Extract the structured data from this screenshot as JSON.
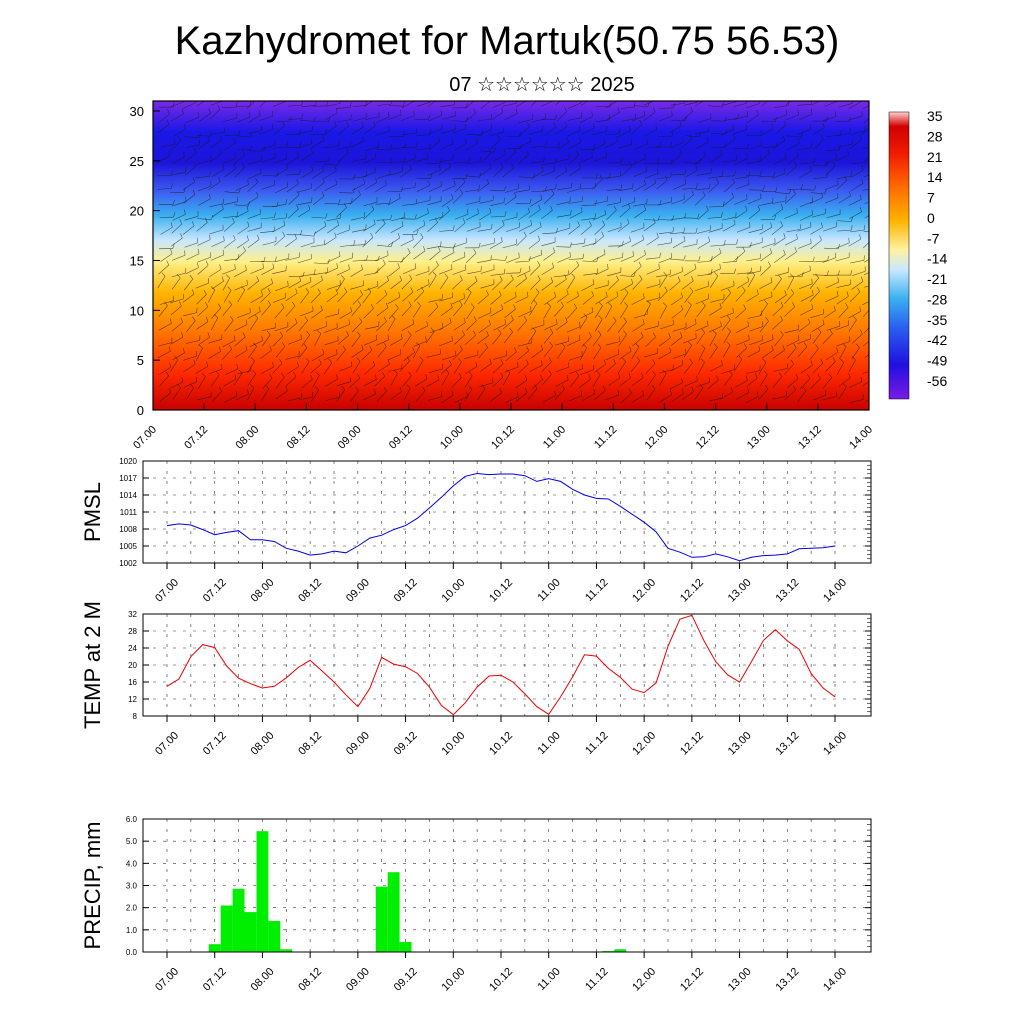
{
  "title": "Kazhydromet for Martuk(50.75 56.53)",
  "subtitle": "07 ☆☆☆☆☆☆ 2025",
  "time_labels": [
    "07.00",
    "07.12",
    "08.00",
    "08.12",
    "09.00",
    "09.12",
    "10.00",
    "10.12",
    "11.00",
    "11.12",
    "12.00",
    "12.12",
    "13.00",
    "13.12",
    "14.00"
  ],
  "colors": {
    "pmsl_line": "#0000ee",
    "temp_line": "#ee0000",
    "precip_bar": "#00ee00"
  },
  "chart_data": [
    {
      "type": "heatmap",
      "name": "upper-air-temperature",
      "y_ticks": [
        "0",
        "5",
        "10",
        "15",
        "20",
        "25",
        "30"
      ],
      "ylim": [
        0,
        31
      ],
      "x_ticks": [
        "07.00",
        "07.12",
        "08.00",
        "08.12",
        "09.00",
        "09.12",
        "10.00",
        "10.12",
        "11.00",
        "11.12",
        "12.00",
        "12.12",
        "13.00",
        "13.12",
        "14.00"
      ],
      "colorbar_labels": [
        "35",
        "28",
        "21",
        "14",
        "7",
        "0",
        "-7",
        "-14",
        "-21",
        "-28",
        "-35",
        "-42",
        "-49",
        "-56"
      ],
      "overlay": "wind barbs"
    },
    {
      "type": "line",
      "ylabel": "PMSL",
      "ylim": [
        1002,
        1020
      ],
      "y_ticks": [
        "1020",
        "1017",
        "1014",
        "1011",
        "1008",
        "1005",
        "1002"
      ],
      "x_ticks": [
        "07.00",
        "07.12",
        "08.00",
        "08.12",
        "09.00",
        "09.12",
        "10.00",
        "10.12",
        "11.00",
        "11.12",
        "12.00",
        "12.12",
        "13.00",
        "13.12",
        "14.00"
      ],
      "step_hours": 3,
      "values": [
        1008.6,
        1008.9,
        1008.7,
        1007.9,
        1007.0,
        1007.4,
        1007.7,
        1006.1,
        1006.1,
        1005.8,
        1004.6,
        1004.1,
        1003.4,
        1003.6,
        1004.1,
        1003.8,
        1005.0,
        1006.4,
        1006.9,
        1007.9,
        1008.6,
        1009.9,
        1011.7,
        1013.6,
        1015.6,
        1017.3,
        1017.8,
        1017.6,
        1017.7,
        1017.7,
        1017.4,
        1016.4,
        1016.9,
        1016.4,
        1015.0,
        1014.0,
        1013.4,
        1013.3,
        1012.0,
        1010.6,
        1009.2,
        1007.5,
        1004.6,
        1003.9,
        1003.0,
        1003.1,
        1003.6,
        1003.1,
        1002.4,
        1003.0,
        1003.3,
        1003.4,
        1003.6,
        1004.5,
        1004.6,
        1004.7,
        1005.0
      ],
      "grid": true
    },
    {
      "type": "line",
      "ylabel": "TEMP at 2 M",
      "ylim": [
        8,
        32
      ],
      "y_ticks": [
        "32",
        "28",
        "24",
        "20",
        "16",
        "12",
        "8"
      ],
      "x_ticks": [
        "07.00",
        "07.12",
        "08.00",
        "08.12",
        "09.00",
        "09.12",
        "10.00",
        "10.12",
        "11.00",
        "11.12",
        "12.00",
        "12.12",
        "13.00",
        "13.12",
        "14.00"
      ],
      "step_hours": 3,
      "values": [
        15.0,
        16.7,
        22.0,
        24.8,
        24.1,
        19.8,
        16.9,
        15.6,
        14.6,
        15.0,
        17.0,
        19.4,
        21.1,
        18.6,
        16.0,
        13.0,
        10.2,
        14.5,
        21.8,
        20.2,
        19.6,
        18.0,
        14.8,
        10.5,
        8.3,
        11.1,
        14.8,
        17.4,
        17.6,
        16.0,
        13.2,
        10.2,
        8.4,
        12.5,
        17.2,
        22.4,
        22.1,
        19.2,
        17.1,
        14.3,
        13.5,
        15.8,
        24.4,
        30.8,
        31.7,
        25.8,
        20.8,
        17.7,
        16.0,
        20.8,
        25.8,
        28.3,
        25.7,
        23.7,
        18.0,
        14.6,
        12.5
      ],
      "grid": true
    },
    {
      "type": "bar",
      "ylabel": "PRECIP, mm",
      "ylim": [
        0,
        6
      ],
      "y_ticks": [
        "6.0",
        "5.0",
        "4.0",
        "3.0",
        "2.0",
        "1.0",
        "0.0"
      ],
      "x_ticks": [
        "07.00",
        "07.12",
        "08.00",
        "08.12",
        "09.00",
        "09.12",
        "10.00",
        "10.12",
        "11.00",
        "11.12",
        "12.00",
        "12.12",
        "13.00",
        "13.12",
        "14.00"
      ],
      "step_hours": 3,
      "values": [
        0,
        0,
        0,
        0,
        0.35,
        2.1,
        2.85,
        1.8,
        5.45,
        1.4,
        0.12,
        0,
        0,
        0,
        0,
        0,
        0,
        0,
        2.95,
        3.6,
        0.45,
        0,
        0,
        0,
        0,
        0,
        0,
        0,
        0,
        0,
        0,
        0,
        0,
        0,
        0,
        0,
        0,
        0.04,
        0.12,
        0,
        0,
        0,
        0,
        0,
        0,
        0,
        0,
        0,
        0,
        0,
        0,
        0,
        0,
        0,
        0,
        0
      ],
      "grid": true
    }
  ]
}
